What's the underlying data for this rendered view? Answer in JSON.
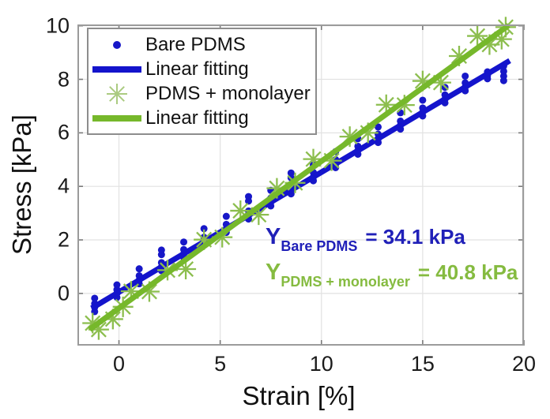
{
  "figure": {
    "xlabel": "Strain [%]",
    "ylabel": "Stress [kPa]",
    "x_ticks": [
      0,
      5,
      10,
      15,
      20
    ],
    "y_ticks": [
      0,
      2,
      4,
      6,
      8,
      10
    ],
    "xlim": [
      -2.05,
      20
    ],
    "ylim": [
      -1.95,
      10.05
    ],
    "grid_color": "#e2e2e2",
    "frame_color": "#9b9b9b",
    "tick_color": "#7a7a7a",
    "background": "#ffffff"
  },
  "colors": {
    "blue_marker": "#1717c8",
    "blue_line": "#1414cc",
    "blue_text": "#2020b8",
    "green_marker": "#8cbe4e",
    "green_line": "#76b82b",
    "green_text": "#85bb40",
    "legend_asterisk": "#abcb81"
  },
  "legend": {
    "items": [
      {
        "label": "Bare PDMS",
        "marker": "dot",
        "color": "#1717c8"
      },
      {
        "label": "Linear fitting",
        "marker": "line",
        "color": "#1414cc"
      },
      {
        "label": "PDMS + monolayer",
        "marker": "asterisk",
        "color": "#abcb81"
      },
      {
        "label": "Linear fitting",
        "marker": "line",
        "color": "#76b82b"
      }
    ]
  },
  "annotations": [
    {
      "symbol": "Y",
      "subscript": "Bare PDMS",
      "value": "= 34.1 kPa",
      "color": "#2020b8"
    },
    {
      "symbol": "Y",
      "subscript": "PDMS + monolayer",
      "value": "= 40.8 kPa",
      "color": "#85bb40"
    }
  ],
  "chart_data": {
    "type": "scatter",
    "title": "",
    "xlabel": "Strain [%]",
    "ylabel": "Stress [kPa]",
    "xlim": [
      -2.05,
      20
    ],
    "ylim": [
      -1.95,
      10.05
    ],
    "grid": true,
    "legend_position": "top-left",
    "series": [
      {
        "name": "Bare PDMS",
        "plot_type": "scatter",
        "marker": "dot",
        "color": "#1717c8",
        "youngs_modulus_kPa": 34.1,
        "clusters": [
          {
            "x": -1.2,
            "ys": [
              -0.68,
              -0.52,
              -0.38,
              -0.18
            ]
          },
          {
            "x": -0.1,
            "ys": [
              -0.15,
              0.0,
              0.14,
              0.32
            ]
          },
          {
            "x": 1.0,
            "ys": [
              0.36,
              0.5,
              0.66,
              0.92
            ]
          },
          {
            "x": 2.1,
            "ys": [
              0.85,
              0.99,
              1.15,
              1.45,
              1.62
            ]
          },
          {
            "x": 3.2,
            "ys": [
              1.34,
              1.48,
              1.64,
              1.92
            ]
          },
          {
            "x": 4.2,
            "ys": [
              1.8,
              1.94,
              2.1,
              2.42
            ]
          },
          {
            "x": 5.3,
            "ys": [
              2.28,
              2.42,
              2.58,
              2.88
            ]
          },
          {
            "x": 6.4,
            "ys": [
              2.78,
              2.92,
              3.08,
              3.45,
              3.62
            ]
          },
          {
            "x": 7.5,
            "ys": [
              3.27,
              3.41,
              3.56,
              3.85
            ]
          },
          {
            "x": 8.5,
            "ys": [
              3.72,
              3.86,
              4.02,
              4.32,
              4.5
            ]
          },
          {
            "x": 9.6,
            "ys": [
              4.21,
              4.35,
              4.52,
              4.8
            ]
          },
          {
            "x": 10.7,
            "ys": [
              4.7,
              4.84,
              5.0,
              5.3
            ]
          },
          {
            "x": 11.8,
            "ys": [
              5.2,
              5.34,
              5.5,
              5.78
            ]
          },
          {
            "x": 12.8,
            "ys": [
              5.64,
              5.78,
              5.95,
              6.22
            ]
          },
          {
            "x": 13.9,
            "ys": [
              6.14,
              6.28,
              6.44,
              6.75
            ]
          },
          {
            "x": 15.0,
            "ys": [
              6.63,
              6.77,
              6.93,
              7.22
            ]
          },
          {
            "x": 16.1,
            "ys": [
              7.12,
              7.26,
              7.42,
              7.7
            ]
          },
          {
            "x": 17.1,
            "ys": [
              7.57,
              7.71,
              7.87,
              8.12
            ]
          },
          {
            "x": 18.2,
            "ys": [
              8.02,
              8.14,
              8.28
            ]
          },
          {
            "x": 19.0,
            "ys": [
              7.95,
              8.12,
              8.3,
              8.5
            ]
          }
        ]
      },
      {
        "name": "Linear fitting",
        "plot_type": "line",
        "color": "#1414cc",
        "fit_for": "Bare PDMS",
        "slope": 0.448,
        "intercept": 0.05,
        "x_range": [
          -1.35,
          19.3
        ]
      },
      {
        "name": "PDMS + monolayer",
        "plot_type": "scatter",
        "marker": "asterisk",
        "color": "#8cbe4e",
        "youngs_modulus_kPa": 40.8,
        "points": [
          [
            -1.3,
            -1.11
          ],
          [
            -1.0,
            -1.35
          ],
          [
            -0.3,
            -0.96
          ],
          [
            0.2,
            -0.5
          ],
          [
            0.6,
            0.08
          ],
          [
            1.5,
            0.07
          ],
          [
            2.4,
            0.87
          ],
          [
            3.3,
            0.91
          ],
          [
            4.2,
            2.01
          ],
          [
            5.1,
            2.1
          ],
          [
            6.0,
            3.09
          ],
          [
            6.9,
            2.94
          ],
          [
            7.8,
            3.93
          ],
          [
            8.7,
            4.13
          ],
          [
            9.6,
            5.02
          ],
          [
            10.5,
            4.96
          ],
          [
            11.4,
            5.86
          ],
          [
            12.3,
            6.0
          ],
          [
            13.2,
            7.05
          ],
          [
            14.1,
            7.04
          ],
          [
            15.0,
            7.94
          ],
          [
            15.9,
            7.88
          ],
          [
            16.8,
            8.87
          ],
          [
            17.7,
            9.62
          ],
          [
            18.3,
            9.3
          ],
          [
            18.9,
            9.5
          ],
          [
            19.1,
            9.95
          ]
        ]
      },
      {
        "name": "Linear fitting",
        "plot_type": "line",
        "color": "#76b82b",
        "fit_for": "PDMS + monolayer",
        "slope": 0.549,
        "intercept": -0.55,
        "x_range": [
          -1.45,
          19.25
        ]
      }
    ]
  }
}
